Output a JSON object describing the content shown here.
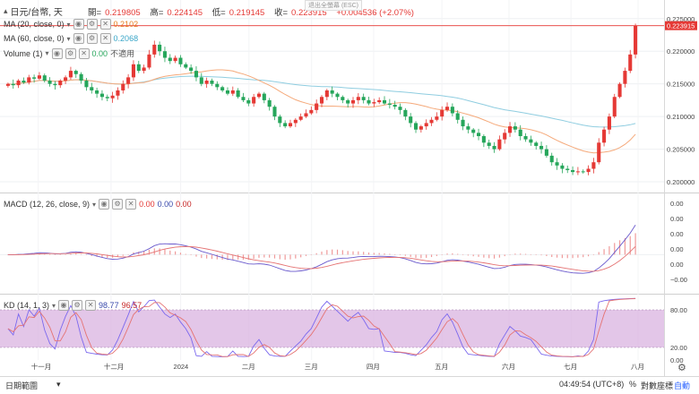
{
  "header": {
    "symbol": "日元/台幣, 天",
    "open_label": "開=",
    "open": "0.219805",
    "high_label": "高=",
    "high": "0.224145",
    "low_label": "低=",
    "low": "0.219145",
    "close_label": "收=",
    "close": "0.223915",
    "change": "+0.004536 (+2.07%)",
    "esc_hint": "退出全螢幕 (ESC)"
  },
  "legends": {
    "ma20": {
      "label": "MA (20, close, 0)",
      "value": "0.2102",
      "color": "#e67e22"
    },
    "ma60": {
      "label": "MA (60, close, 0)",
      "value": "0.2068",
      "color": "#3aa6c8"
    },
    "volume": {
      "label": "Volume (1)",
      "value": "0.00",
      "extra": "不適用"
    },
    "macd": {
      "label": "MACD (12, 26, close, 9)",
      "v1": "0.00",
      "v2": "0.00",
      "v3": "0.00"
    },
    "kd": {
      "label": "KD (14, 1, 3)",
      "k": "98.77",
      "d": "96.57"
    }
  },
  "colors": {
    "up": "#e53935",
    "down": "#26a65b",
    "ma20": "#f5a97a",
    "ma60": "#8fcde0",
    "k": "#7b68ee",
    "d": "#e57373",
    "kdband": "#d9b3e0"
  },
  "price_axis": {
    "ticks": [
      "0.225000",
      "0.220000",
      "0.215000",
      "0.210000",
      "0.205000",
      "0.200000"
    ],
    "last_price": "0.223915"
  },
  "macd_axis": {
    "ticks": [
      "0.00",
      "0.00",
      "0.00",
      "0.00",
      "0.00",
      "−0.00"
    ]
  },
  "kd_axis": {
    "ticks": [
      "80.00",
      "20.00",
      "0.00"
    ]
  },
  "time_axis": {
    "labels": [
      "十一月",
      "十二月",
      "2024",
      "二月",
      "三月",
      "四月",
      "五月",
      "六月",
      "七月",
      "八月"
    ]
  },
  "toolbar": {
    "date_range": "日期範圍",
    "time": "04:49:54 (UTC+8)",
    "percent": "%",
    "log": "對數座標",
    "auto": "自動",
    "gear": "⚙"
  },
  "chart_data": {
    "type": "candlestick",
    "x_start": "2023-10-16",
    "x_end": "2024-07-31",
    "frequency": "daily",
    "y_range": [
      0.1985,
      0.2262
    ],
    "close_series": [
      0.215,
      0.2148,
      0.2155,
      0.2152,
      0.216,
      0.2158,
      0.2163,
      0.2155,
      0.215,
      0.2148,
      0.2155,
      0.216,
      0.217,
      0.2165,
      0.2155,
      0.2145,
      0.214,
      0.2135,
      0.213,
      0.2128,
      0.2132,
      0.214,
      0.215,
      0.216,
      0.218,
      0.217,
      0.2175,
      0.2195,
      0.221,
      0.22,
      0.219,
      0.2185,
      0.219,
      0.218,
      0.2175,
      0.217,
      0.216,
      0.215,
      0.2155,
      0.215,
      0.2145,
      0.214,
      0.2135,
      0.214,
      0.213,
      0.2125,
      0.212,
      0.213,
      0.2135,
      0.2125,
      0.2115,
      0.21,
      0.209,
      0.2085,
      0.209,
      0.2095,
      0.21,
      0.2105,
      0.211,
      0.212,
      0.213,
      0.214,
      0.2135,
      0.213,
      0.2125,
      0.212,
      0.2125,
      0.213,
      0.2125,
      0.212,
      0.2122,
      0.2125,
      0.212,
      0.2118,
      0.2115,
      0.211,
      0.21,
      0.209,
      0.208,
      0.2085,
      0.209,
      0.2095,
      0.21,
      0.211,
      0.2115,
      0.2105,
      0.2095,
      0.2085,
      0.208,
      0.2075,
      0.207,
      0.206,
      0.2055,
      0.205,
      0.2065,
      0.2075,
      0.2085,
      0.208,
      0.207,
      0.2065,
      0.206,
      0.2055,
      0.205,
      0.204,
      0.203,
      0.2025,
      0.202,
      0.2018,
      0.2015,
      0.2016,
      0.2015,
      0.202,
      0.203,
      0.206,
      0.208,
      0.21,
      0.213,
      0.215,
      0.217,
      0.2195,
      0.2239
    ],
    "ma20_end": 0.2102,
    "ma60_end": 0.2068,
    "macd_range": [
      -0.004,
      0.006
    ],
    "kd_range": [
      0,
      100
    ],
    "kd_band": [
      20,
      80
    ]
  }
}
